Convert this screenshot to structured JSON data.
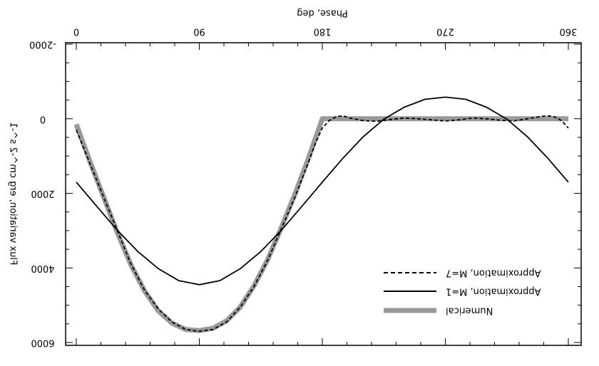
{
  "chart_data": {
    "type": "line",
    "mirrored": true,
    "title": "",
    "xlabel": "Phase, deg",
    "ylabel": "Flux variation, erg cm^-2 s^-1",
    "xlim": [
      0,
      360
    ],
    "ylim": [
      -2000,
      6000
    ],
    "y_inverted": true,
    "x_ticks": [
      0,
      90,
      180,
      270,
      360
    ],
    "x_tick_labels": [
      "0",
      "90",
      "180",
      "270",
      "360"
    ],
    "y_ticks": [
      -2000,
      0,
      2000,
      4000,
      6000
    ],
    "y_tick_labels": [
      "-2000",
      "0",
      "2000",
      "4000",
      "6000"
    ],
    "grid": false,
    "legend_position": "bottom-right",
    "series": [
      {
        "name": "Approximation, M=7",
        "style": "dashed",
        "color": "#000000",
        "x": [
          0,
          10,
          20,
          30,
          40,
          50,
          60,
          70,
          80,
          90,
          100,
          110,
          120,
          130,
          140,
          150,
          160,
          170,
          175,
          180,
          185,
          190,
          195,
          200,
          210,
          220,
          230,
          240,
          250,
          260,
          270,
          280,
          290,
          300,
          310,
          320,
          330,
          340,
          345,
          350,
          355,
          360
        ],
        "y": [
          300,
          1200,
          2100,
          3000,
          3900,
          4600,
          5100,
          5450,
          5650,
          5700,
          5650,
          5450,
          5050,
          4500,
          3800,
          2950,
          2100,
          1150,
          650,
          250,
          50,
          -50,
          -80,
          -20,
          50,
          70,
          20,
          -20,
          0,
          30,
          60,
          30,
          -20,
          0,
          40,
          60,
          0,
          -60,
          -80,
          -50,
          50,
          250
        ]
      },
      {
        "name": "Approximation, M=1",
        "style": "solid",
        "color": "#000000",
        "x": [
          0,
          15,
          30,
          45,
          60,
          75,
          90,
          105,
          120,
          135,
          150,
          165,
          180,
          195,
          210,
          225,
          240,
          255,
          270,
          285,
          300,
          315,
          330,
          345,
          360
        ],
        "y": [
          1700,
          2350,
          2990,
          3560,
          4020,
          4340,
          4450,
          4340,
          4020,
          3560,
          2990,
          2350,
          1700,
          1060,
          480,
          10,
          -310,
          -520,
          -580,
          -520,
          -310,
          10,
          480,
          1060,
          1700
        ]
      },
      {
        "name": "Numerical",
        "style": "thick",
        "color": "#999999",
        "x": [
          0,
          10,
          20,
          30,
          40,
          50,
          60,
          70,
          80,
          90,
          100,
          110,
          120,
          130,
          140,
          150,
          160,
          170,
          180,
          190,
          200,
          220,
          240,
          260,
          280,
          300,
          320,
          340,
          360
        ],
        "y": [
          150,
          1150,
          2100,
          3050,
          3920,
          4620,
          5150,
          5480,
          5650,
          5680,
          5620,
          5420,
          5050,
          4480,
          3780,
          2920,
          2020,
          1050,
          0,
          0,
          0,
          0,
          0,
          0,
          0,
          0,
          0,
          0,
          0
        ]
      }
    ]
  }
}
